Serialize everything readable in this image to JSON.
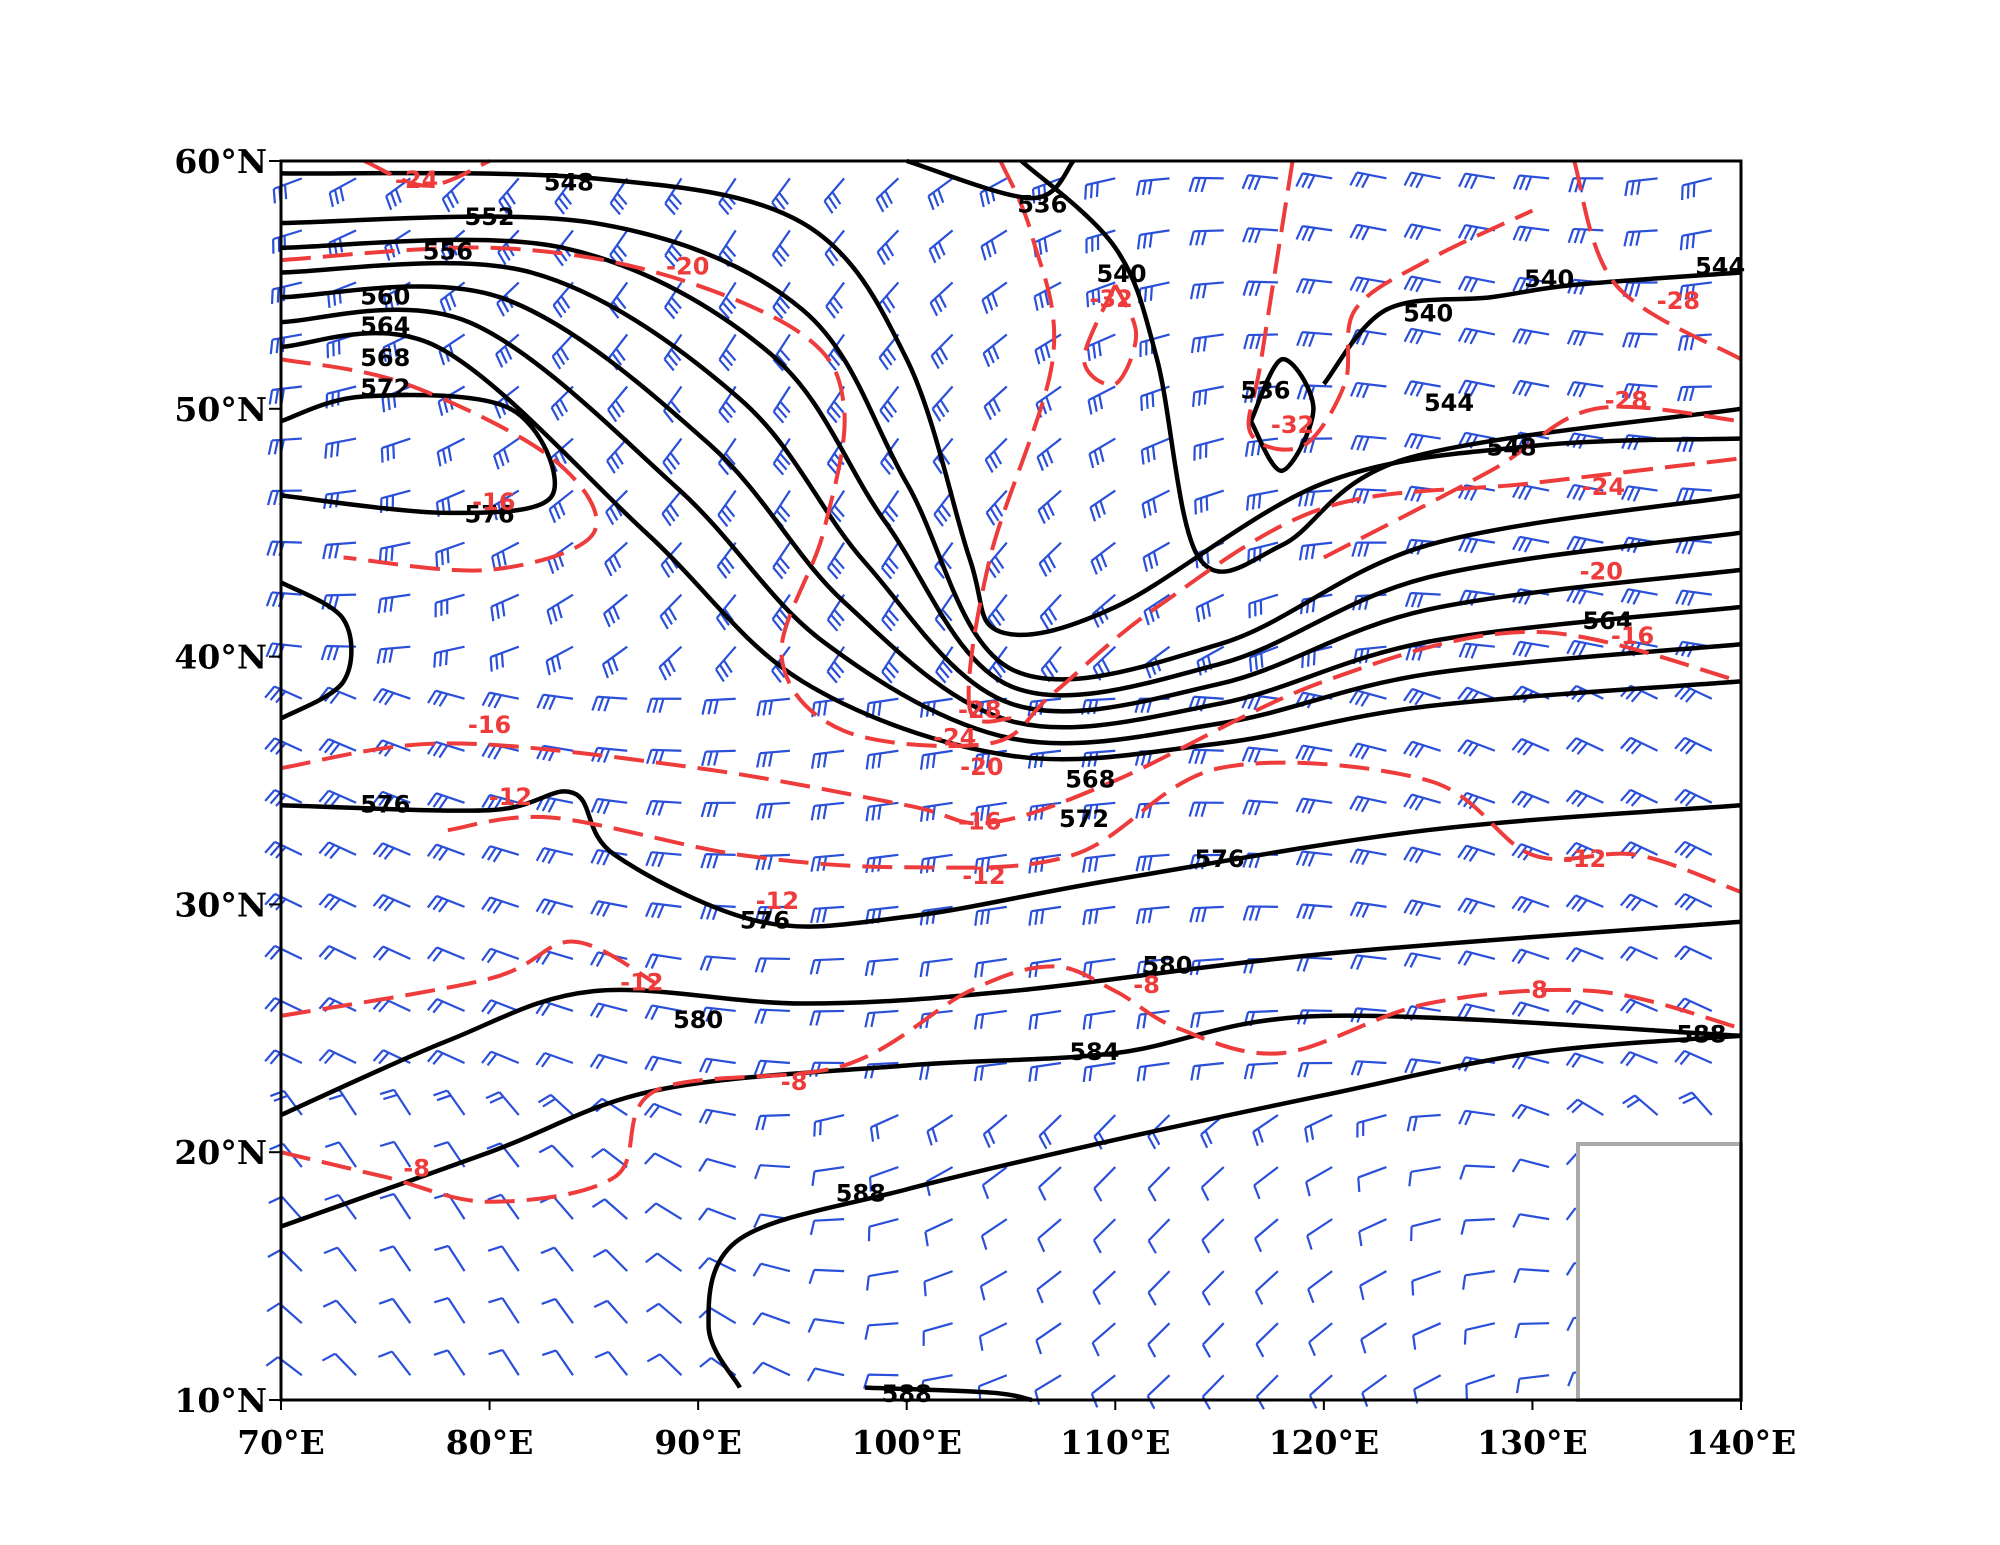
{
  "axes": {
    "x_ticks": [
      "70°E",
      "80°E",
      "90°E",
      "100°E",
      "110°E",
      "120°E",
      "130°E",
      "140°E"
    ],
    "y_ticks": [
      "10°N",
      "20°N",
      "30°N",
      "40°N",
      "50°N",
      "60°N"
    ]
  },
  "height_labels": [
    548,
    552,
    556,
    560,
    564,
    568,
    572,
    576,
    536,
    540,
    540,
    540,
    536,
    544,
    548,
    576,
    576,
    576,
    572,
    568,
    580,
    580,
    584,
    588,
    588,
    588,
    564,
    544
  ],
  "temperature_labels": [
    -24,
    -20,
    -32,
    -32,
    -28,
    -28,
    -24,
    -20,
    -16,
    -16,
    -16,
    -12,
    -12,
    -12,
    -16,
    -12,
    -20,
    -24,
    -28,
    -8,
    -8,
    -8,
    -8,
    -12
  ]
}
